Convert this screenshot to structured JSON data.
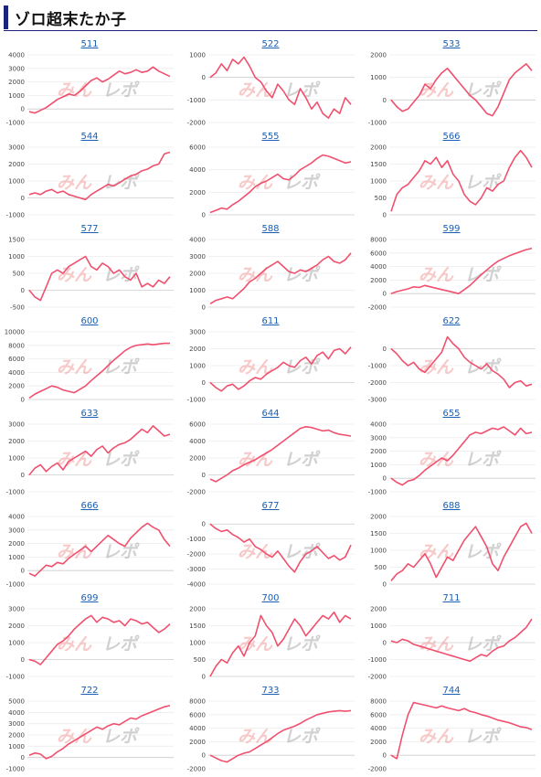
{
  "header": {
    "title": "ゾロ超末たか子",
    "accent": "#1a237e"
  },
  "watermark": {
    "part1": "みん",
    "part2": "レポ"
  },
  "line_color": "#f0506e",
  "chart_data": [
    {
      "type": "line",
      "title": "511",
      "yticks": [
        -1000,
        0,
        1000,
        2000,
        3000,
        4000
      ],
      "ylim": [
        -1000,
        4000
      ],
      "values": [
        -200,
        -300,
        -100,
        100,
        400,
        700,
        900,
        1100,
        1000,
        1300,
        1700,
        2100,
        2300,
        2000,
        2200,
        2500,
        2800,
        2600,
        2700,
        2900,
        2700,
        2800,
        3100,
        2800,
        2600,
        2400
      ]
    },
    {
      "type": "line",
      "title": "522",
      "yticks": [
        -2000,
        -1000,
        0,
        1000
      ],
      "ylim": [
        -2000,
        1000
      ],
      "values": [
        0,
        200,
        600,
        300,
        800,
        600,
        900,
        500,
        0,
        -200,
        -600,
        -900,
        -300,
        -600,
        -1000,
        -1200,
        -500,
        -900,
        -1400,
        -1100,
        -1600,
        -1800,
        -1400,
        -1600,
        -900,
        -1200
      ]
    },
    {
      "type": "line",
      "title": "533",
      "yticks": [
        -1000,
        0,
        1000,
        2000
      ],
      "ylim": [
        -1000,
        2000
      ],
      "values": [
        0,
        -300,
        -500,
        -400,
        -100,
        200,
        700,
        500,
        900,
        1200,
        1400,
        1100,
        800,
        500,
        200,
        0,
        -300,
        -600,
        -700,
        -300,
        300,
        900,
        1200,
        1400,
        1600,
        1300
      ]
    },
    {
      "type": "line",
      "title": "544",
      "yticks": [
        -1000,
        0,
        1000,
        2000,
        3000
      ],
      "ylim": [
        -1000,
        3000
      ],
      "values": [
        200,
        300,
        200,
        400,
        500,
        300,
        400,
        200,
        100,
        0,
        -100,
        200,
        400,
        600,
        800,
        700,
        900,
        1100,
        1300,
        1400,
        1600,
        1700,
        1900,
        2000,
        2600,
        2700
      ]
    },
    {
      "type": "line",
      "title": "555",
      "yticks": [
        0,
        2000,
        4000,
        6000
      ],
      "ylim": [
        0,
        6000
      ],
      "values": [
        200,
        400,
        600,
        500,
        900,
        1200,
        1600,
        2000,
        2500,
        2800,
        3000,
        3300,
        3600,
        3200,
        3100,
        3500,
        4000,
        4300,
        4600,
        5000,
        5300,
        5200,
        5000,
        4800,
        4600,
        4700
      ]
    },
    {
      "type": "line",
      "title": "566",
      "yticks": [
        0,
        500,
        1000,
        1500,
        2000
      ],
      "ylim": [
        0,
        2000
      ],
      "values": [
        100,
        600,
        800,
        900,
        1100,
        1300,
        1600,
        1500,
        1700,
        1400,
        1600,
        1200,
        1000,
        600,
        400,
        300,
        500,
        800,
        700,
        900,
        1000,
        1400,
        1700,
        1900,
        1700,
        1400
      ]
    },
    {
      "type": "line",
      "title": "577",
      "yticks": [
        -500,
        0,
        500,
        1000,
        1500
      ],
      "ylim": [
        -500,
        1500
      ],
      "values": [
        0,
        -200,
        -300,
        100,
        500,
        600,
        500,
        700,
        800,
        900,
        1000,
        700,
        600,
        800,
        700,
        500,
        600,
        400,
        300,
        500,
        100,
        200,
        100,
        300,
        200,
        400
      ]
    },
    {
      "type": "line",
      "title": "588",
      "yticks": [
        0,
        1000,
        2000,
        3000,
        4000
      ],
      "ylim": [
        0,
        4000
      ],
      "values": [
        200,
        400,
        500,
        600,
        500,
        800,
        1100,
        1500,
        1700,
        2000,
        2300,
        2500,
        2700,
        2400,
        2100,
        2000,
        2200,
        2100,
        2300,
        2500,
        2800,
        3000,
        2700,
        2600,
        2800,
        3200
      ]
    },
    {
      "type": "line",
      "title": "599",
      "yticks": [
        -2000,
        0,
        2000,
        4000,
        6000,
        8000
      ],
      "ylim": [
        -2000,
        8000
      ],
      "values": [
        0,
        300,
        500,
        700,
        1000,
        900,
        1200,
        1000,
        800,
        600,
        400,
        200,
        0,
        600,
        1200,
        2000,
        2800,
        3500,
        4200,
        4800,
        5200,
        5600,
        5900,
        6200,
        6500,
        6700
      ]
    },
    {
      "type": "line",
      "title": "600",
      "yticks": [
        0,
        2000,
        4000,
        6000,
        8000,
        10000
      ],
      "ylim": [
        0,
        10000
      ],
      "values": [
        200,
        800,
        1200,
        1600,
        2000,
        1800,
        1400,
        1200,
        1000,
        1500,
        2000,
        2800,
        3500,
        4200,
        5000,
        5800,
        6500,
        7200,
        7700,
        8000,
        8100,
        8200,
        8100,
        8200,
        8300,
        8300
      ]
    },
    {
      "type": "line",
      "title": "611",
      "yticks": [
        -1000,
        0,
        1000,
        2000,
        3000
      ],
      "ylim": [
        -1000,
        3000
      ],
      "values": [
        0,
        -300,
        -500,
        -200,
        -100,
        -400,
        -200,
        100,
        300,
        200,
        500,
        700,
        900,
        1200,
        1000,
        900,
        1300,
        1500,
        1100,
        1600,
        1800,
        1400,
        1900,
        2000,
        1700,
        2100
      ]
    },
    {
      "type": "line",
      "title": "622",
      "yticks": [
        -3000,
        -2000,
        -1000,
        0
      ],
      "ylim": [
        -3000,
        1000
      ],
      "values": [
        0,
        -300,
        -700,
        -1000,
        -800,
        -1200,
        -1400,
        -1000,
        -600,
        -200,
        700,
        300,
        0,
        -500,
        -800,
        -1000,
        -1200,
        -900,
        -1300,
        -1500,
        -1800,
        -2300,
        -2000,
        -1900,
        -2200,
        -2100
      ]
    },
    {
      "type": "line",
      "title": "633",
      "yticks": [
        -1000,
        0,
        1000,
        2000,
        3000
      ],
      "ylim": [
        -1000,
        3000
      ],
      "values": [
        0,
        400,
        600,
        200,
        500,
        700,
        300,
        800,
        1000,
        1200,
        1400,
        1100,
        1500,
        1700,
        1300,
        1600,
        1800,
        1900,
        2100,
        2400,
        2700,
        2500,
        2900,
        2600,
        2300,
        2400
      ]
    },
    {
      "type": "line",
      "title": "644",
      "yticks": [
        -2000,
        0,
        2000,
        4000,
        6000
      ],
      "ylim": [
        -2000,
        6000
      ],
      "values": [
        -500,
        -800,
        -400,
        0,
        500,
        800,
        1200,
        1500,
        1800,
        2200,
        2600,
        3000,
        3500,
        4000,
        4500,
        5000,
        5500,
        5700,
        5600,
        5400,
        5200,
        5300,
        5000,
        4800,
        4700,
        4600
      ]
    },
    {
      "type": "line",
      "title": "655",
      "yticks": [
        -1000,
        0,
        1000,
        2000,
        3000,
        4000
      ],
      "ylim": [
        -1000,
        4000
      ],
      "values": [
        0,
        -300,
        -500,
        -200,
        -100,
        200,
        600,
        900,
        1200,
        1500,
        1300,
        1700,
        2200,
        2700,
        3200,
        3400,
        3300,
        3500,
        3700,
        3600,
        3800,
        3500,
        3200,
        3700,
        3300,
        3400
      ]
    },
    {
      "type": "line",
      "title": "666",
      "yticks": [
        -1000,
        0,
        1000,
        2000,
        3000,
        4000
      ],
      "ylim": [
        -1000,
        4000
      ],
      "values": [
        -200,
        -400,
        0,
        400,
        300,
        600,
        500,
        900,
        1200,
        1500,
        1800,
        1400,
        1800,
        2200,
        2600,
        2300,
        2000,
        1800,
        2400,
        2800,
        3200,
        3500,
        3200,
        3000,
        2300,
        1800
      ]
    },
    {
      "type": "line",
      "title": "677",
      "yticks": [
        -4000,
        -3000,
        -2000,
        -1000,
        0
      ],
      "ylim": [
        -4000,
        500
      ],
      "values": [
        0,
        -300,
        -500,
        -400,
        -700,
        -900,
        -1200,
        -1000,
        -1500,
        -1700,
        -2000,
        -2200,
        -1800,
        -2300,
        -2800,
        -3200,
        -2500,
        -2000,
        -1800,
        -1500,
        -1900,
        -2300,
        -2100,
        -2400,
        -2200,
        -1400
      ]
    },
    {
      "type": "line",
      "title": "688",
      "yticks": [
        0,
        500,
        1000,
        1500,
        2000
      ],
      "ylim": [
        0,
        2000
      ],
      "values": [
        100,
        300,
        400,
        600,
        500,
        700,
        900,
        600,
        200,
        500,
        800,
        700,
        1000,
        1300,
        1500,
        1700,
        1400,
        1100,
        600,
        400,
        800,
        1100,
        1400,
        1700,
        1800,
        1500
      ]
    },
    {
      "type": "line",
      "title": "699",
      "yticks": [
        -1000,
        0,
        1000,
        2000,
        3000
      ],
      "ylim": [
        -1000,
        3000
      ],
      "values": [
        0,
        -100,
        -300,
        100,
        500,
        900,
        1100,
        1400,
        1800,
        2100,
        2400,
        2600,
        2200,
        2500,
        2400,
        2200,
        2300,
        2000,
        2400,
        2300,
        2100,
        2200,
        1900,
        1600,
        1800,
        2100
      ]
    },
    {
      "type": "line",
      "title": "700",
      "yticks": [
        0,
        500,
        1000,
        1500,
        2000
      ],
      "ylim": [
        0,
        2000
      ],
      "values": [
        0,
        300,
        500,
        400,
        700,
        900,
        600,
        1000,
        1200,
        1800,
        1500,
        1300,
        900,
        1100,
        1400,
        1700,
        1500,
        1200,
        1400,
        1600,
        1800,
        1700,
        1900,
        1600,
        1800,
        1700
      ]
    },
    {
      "type": "line",
      "title": "711",
      "yticks": [
        -2000,
        -1000,
        0,
        1000,
        2000
      ],
      "ylim": [
        -2000,
        2000
      ],
      "values": [
        100,
        0,
        200,
        100,
        -100,
        -200,
        -300,
        -400,
        -500,
        -600,
        -700,
        -800,
        -900,
        -1000,
        -1100,
        -900,
        -700,
        -800,
        -500,
        -300,
        -200,
        100,
        300,
        600,
        900,
        1400
      ]
    },
    {
      "type": "line",
      "title": "722",
      "yticks": [
        -1000,
        0,
        1000,
        2000,
        3000,
        4000,
        5000
      ],
      "ylim": [
        -1000,
        5000
      ],
      "values": [
        200,
        400,
        300,
        -100,
        100,
        500,
        800,
        1200,
        1500,
        1800,
        2100,
        2400,
        2700,
        2500,
        2800,
        3000,
        2900,
        3200,
        3500,
        3400,
        3700,
        3900,
        4100,
        4300,
        4500,
        4600
      ]
    },
    {
      "type": "line",
      "title": "733",
      "yticks": [
        -2000,
        0,
        2000,
        4000,
        6000,
        8000
      ],
      "ylim": [
        -2000,
        8000
      ],
      "values": [
        0,
        -400,
        -800,
        -1000,
        -500,
        0,
        300,
        500,
        1000,
        1500,
        2000,
        2600,
        3200,
        3700,
        4000,
        4300,
        4700,
        5200,
        5600,
        6000,
        6200,
        6400,
        6500,
        6600,
        6500,
        6600
      ]
    },
    {
      "type": "line",
      "title": "744",
      "yticks": [
        -2000,
        0,
        2000,
        4000,
        6000,
        8000
      ],
      "ylim": [
        -2000,
        8000
      ],
      "values": [
        0,
        -500,
        3000,
        6000,
        7800,
        7600,
        7400,
        7200,
        7000,
        7300,
        7000,
        6800,
        6600,
        6900,
        6500,
        6300,
        6000,
        5800,
        5500,
        5200,
        5000,
        4800,
        4500,
        4200,
        4100,
        3800
      ]
    }
  ]
}
